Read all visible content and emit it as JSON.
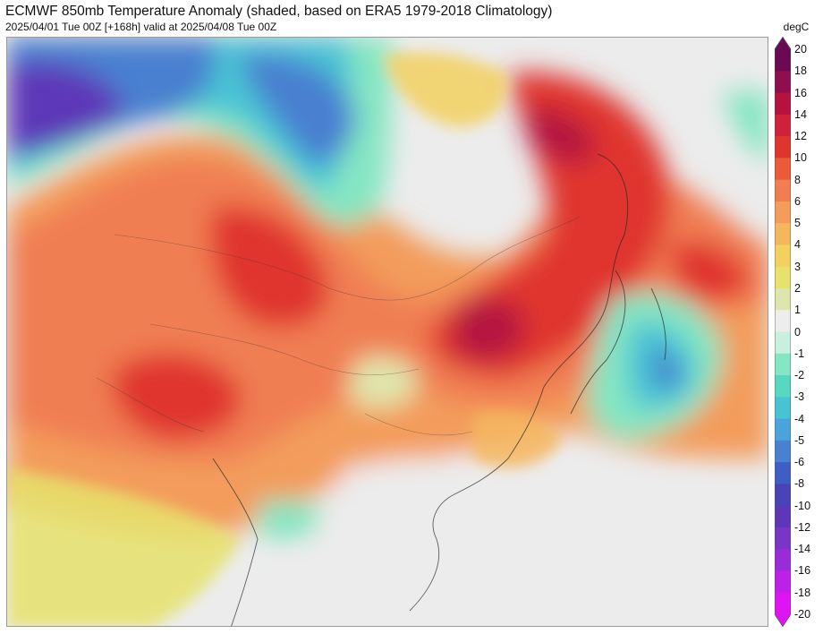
{
  "header": {
    "title": "ECMWF 850mb Temperature Anomaly (shaded, based on ERA5 1979-2018 Climatology)",
    "subtitle": "2025/04/01 Tue 00Z [+168h] valid at 2025/04/08 Tue 00Z"
  },
  "colorbar": {
    "unit": "degC",
    "ticks": [
      "20",
      "18",
      "16",
      "14",
      "12",
      "10",
      "8",
      "6",
      "5",
      "4",
      "3",
      "2",
      "1",
      "0",
      "-1",
      "-2",
      "-3",
      "-4",
      "-5",
      "-6",
      "-8",
      "-10",
      "-12",
      "-14",
      "-16",
      "-18",
      "-20"
    ],
    "colors": [
      "#6a0a52",
      "#8e0e4e",
      "#b5123f",
      "#d0213a",
      "#e0352d",
      "#ec5a3c",
      "#f07e52",
      "#f39c5c",
      "#f5b75e",
      "#f3d060",
      "#e6e26c",
      "#dfe6ad",
      "#ededed",
      "#c8f0df",
      "#84e6c2",
      "#57d8c0",
      "#48c3d4",
      "#4aa3da",
      "#4a80d0",
      "#3f5ec4",
      "#4a43b8",
      "#5d37b8",
      "#7a34c6",
      "#9a2cd8",
      "#bf20e8",
      "#de14f2"
    ]
  }
}
